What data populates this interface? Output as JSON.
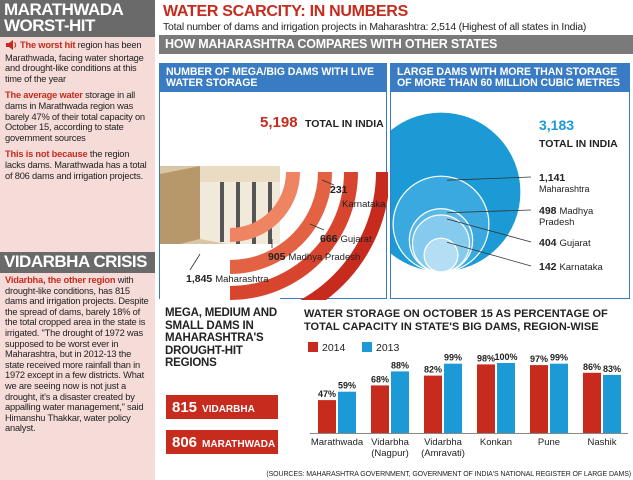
{
  "sidebar": {
    "title": "MARATHWADA WORST-HIT",
    "paragraphs": [
      {
        "lead": "The worst hit",
        "rest": " region has been Marathwada, facing water shortage and drought-like conditions at this time of the year"
      },
      {
        "lead": "The average water",
        "rest": " storage in all dams in Marathwada region was barely 47% of their total capacity on October 15, according to state government sources"
      },
      {
        "lead": "This is not because",
        "rest": " the region lacks dams. Marathwada has a total of 806 dams and irrigation projects."
      }
    ],
    "crisis_title": "VIDARBHA CRISIS",
    "crisis_lead": "Vidarbha, the other region",
    "crisis_rest": " with drought-like conditions, has 815 dams and irrigation projects. Despite the spread of dams, barely 18% of the total cropped area in the state is irrigated. \"The drought of 1972 was supposed to be worst ever in Maharashtra, but in 2012-13 the state received more rainfall than in 1972 except in a few districts. What we are seeing now is not just a drought, it's a disaster created by appalling water management,\" said Himanshu Thakkar, water policy analyst."
  },
  "header": {
    "title": "WATER SCARCITY: IN NUMBERS",
    "subtitle": "Total number of dams and irrigation projects in Maharashtra: 2,514 (Highest of all states in India)",
    "compare": "HOW MAHARASHTRA COMPARES WITH OTHER STATES"
  },
  "chart_data": [
    {
      "type": "other",
      "title": "NUMBER OF MEGA/BIG DAMS WITH LIVE WATER STORAGE",
      "total": {
        "value": "5,198",
        "label": "TOTAL IN INDIA"
      },
      "values": [
        {
          "name": "Maharashtra",
          "value": 1845,
          "label": "1,845"
        },
        {
          "name": "Madhya Pradesh",
          "value": 905,
          "label": "905"
        },
        {
          "name": "Gujarat",
          "value": 666,
          "label": "666"
        },
        {
          "name": "Karnataka",
          "value": 231,
          "label": "231"
        }
      ]
    },
    {
      "type": "other",
      "title": "LARGE DAMS WITH MORE THAN STORAGE OF MORE THAN 60 MILLION CUBIC METRES",
      "total": {
        "value": "3,183",
        "label": "TOTAL IN INDIA"
      },
      "values": [
        {
          "name": "Maharashtra",
          "value": 1141,
          "label": "1,141"
        },
        {
          "name": "Madhya Pradesh",
          "value": 498,
          "label": "498"
        },
        {
          "name": "Gujarat",
          "value": 404,
          "label": "404"
        },
        {
          "name": "Karnataka",
          "value": 142,
          "label": "142"
        }
      ]
    },
    {
      "type": "bar",
      "title": "WATER STORAGE ON OCTOBER 15 AS PERCENTAGE OF TOTAL CAPACITY IN STATE'S BIG DAMS, REGION-WISE",
      "categories": [
        "Marathwada",
        "Vidarbha (Nagpur)",
        "Vidarbha (Amravati)",
        "Konkan",
        "Pune",
        "Nashik"
      ],
      "category_lines": [
        [
          "Marathwada"
        ],
        [
          "Vidarbha",
          "(Nagpur)"
        ],
        [
          "Vidarbha",
          "(Amravati)"
        ],
        [
          "Konkan"
        ],
        [
          "Pune"
        ],
        [
          "Nashik"
        ]
      ],
      "series": [
        {
          "name": "2014",
          "values": [
            47,
            68,
            82,
            98,
            97,
            86
          ],
          "labels": [
            "47%",
            "68%",
            "82%",
            "98%",
            "97%",
            "86%"
          ]
        },
        {
          "name": "2013",
          "values": [
            59,
            88,
            99,
            100,
            99,
            83
          ],
          "labels": [
            "59%",
            "88%",
            "99%",
            "100%",
            "99%",
            "83%"
          ]
        }
      ],
      "ylim": [
        0,
        100
      ]
    }
  ],
  "drought": {
    "title": "MEGA, MEDIUM AND SMALL DAMS IN MAHARASHTRA'S DROUGHT-HIT REGIONS",
    "items": [
      {
        "num": "815",
        "label": "VIDARBHA"
      },
      {
        "num": "806",
        "label": "MARATHWADA"
      }
    ]
  },
  "source": "(SOURCES: MAHARASHTRA GOVERNMENT, GOVERNMENT OF INDIA'S NATIONAL REGISTER OF LARGE DAMS)",
  "colors": {
    "red": "#c62b1d",
    "blue": "#1b9ad6",
    "panel_blue": "#3a7cc3",
    "pink": "#f6dcd9"
  }
}
